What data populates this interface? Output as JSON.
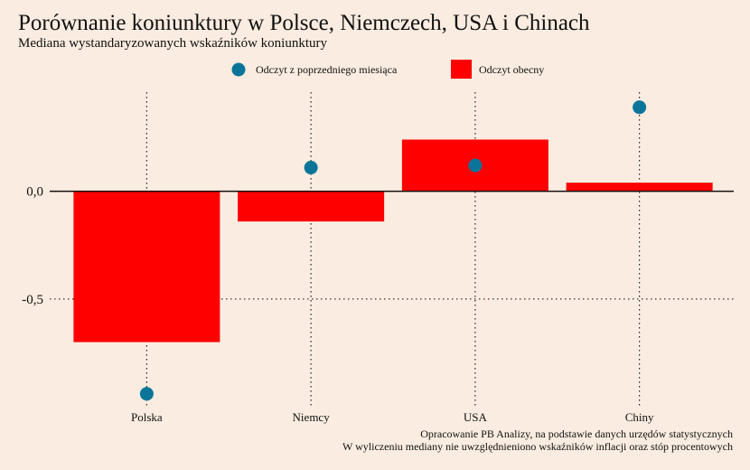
{
  "chart_data": {
    "type": "bar",
    "title": "Porównanie koniunktury w Polsce, Niemczech, USA i Chinach",
    "subtitle": "Mediana wystandaryzowanych wskaźników koniunktury",
    "categories": [
      "Polska",
      "Niemcy",
      "USA",
      "Chiny"
    ],
    "series": [
      {
        "name": "Odczyt z poprzedniego miesiąca",
        "kind": "point",
        "color": "#0a7599",
        "values": [
          -0.94,
          0.11,
          0.12,
          0.39
        ]
      },
      {
        "name": "Odczyt obecny",
        "kind": "bar",
        "color": "#ff0000",
        "values": [
          -0.7,
          -0.14,
          0.24,
          0.04
        ]
      }
    ],
    "yticks": [
      0.0,
      -0.5
    ],
    "ytick_labels": [
      "0,0",
      "-0,5"
    ],
    "ylim": [
      -1.0,
      0.46
    ],
    "grid": true,
    "legend": "top-center",
    "captions": [
      "Opracowanie PB Analizy, na podstawie danych urzędów statystycznych",
      "W wyliczeniu mediany nie uwzględnieniono wskaźników inflacji oraz stóp procentowych"
    ]
  }
}
